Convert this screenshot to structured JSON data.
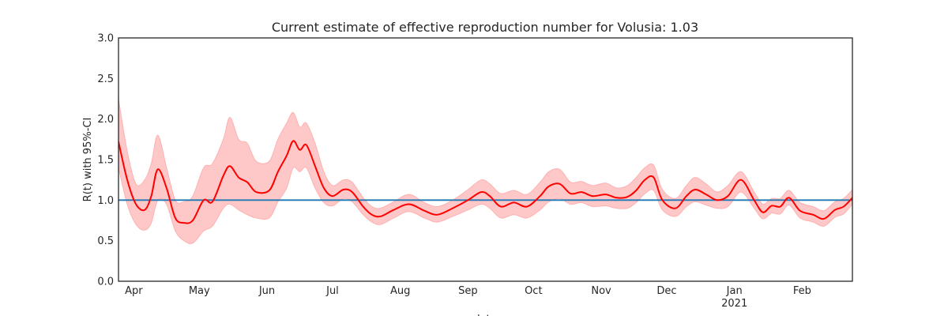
{
  "chart_data": {
    "type": "line",
    "title": "Current estimate of effective reproduction number for Volusia: 1.03",
    "xlabel": "date",
    "ylabel": "R(t) with 95%-CI",
    "ylim": [
      0,
      3
    ],
    "yticks": [
      "0.0",
      "0.5",
      "1.0",
      "1.5",
      "2.0",
      "2.5",
      "3.0"
    ],
    "xlim": [
      "2020-03-25",
      "2021-02-24"
    ],
    "xticks": [
      {
        "date": "2020-04-01",
        "label": "Apr"
      },
      {
        "date": "2020-05-01",
        "label": "May"
      },
      {
        "date": "2020-06-01",
        "label": "Jun"
      },
      {
        "date": "2020-07-01",
        "label": "Jul"
      },
      {
        "date": "2020-08-01",
        "label": "Aug"
      },
      {
        "date": "2020-09-01",
        "label": "Sep"
      },
      {
        "date": "2020-10-01",
        "label": "Oct"
      },
      {
        "date": "2020-11-01",
        "label": "Nov"
      },
      {
        "date": "2020-12-01",
        "label": "Dec"
      },
      {
        "date": "2021-01-01",
        "label": "Jan",
        "sublabel": "2021"
      },
      {
        "date": "2021-02-01",
        "label": "Feb"
      }
    ],
    "grid": false,
    "reference_line": 1.0,
    "colors": {
      "estimate": "#ff0000",
      "ci": "#ffc8c8",
      "ci_edge": "#ffb0b0",
      "reference": "#1f77b4",
      "frame": "#262626"
    },
    "series": [
      {
        "x": [
          "2020-03-25",
          "2020-03-29",
          "2020-04-02",
          "2020-04-06",
          "2020-04-09",
          "2020-04-12",
          "2020-04-16",
          "2020-04-20",
          "2020-04-24",
          "2020-04-28",
          "2020-05-03",
          "2020-05-07",
          "2020-05-12",
          "2020-05-15",
          "2020-05-19",
          "2020-05-23",
          "2020-05-27",
          "2020-06-02",
          "2020-06-06",
          "2020-06-10",
          "2020-06-13",
          "2020-06-16",
          "2020-06-19",
          "2020-06-23",
          "2020-06-27",
          "2020-07-01",
          "2020-07-06",
          "2020-07-10",
          "2020-07-15",
          "2020-07-19",
          "2020-07-23",
          "2020-07-29",
          "2020-08-05",
          "2020-08-12",
          "2020-08-18",
          "2020-08-25",
          "2020-09-01",
          "2020-09-07",
          "2020-09-11",
          "2020-09-16",
          "2020-09-22",
          "2020-09-28",
          "2020-10-04",
          "2020-10-08",
          "2020-10-13",
          "2020-10-18",
          "2020-10-23",
          "2020-10-28",
          "2020-11-03",
          "2020-11-08",
          "2020-11-13",
          "2020-11-17",
          "2020-11-21",
          "2020-11-25",
          "2020-11-29",
          "2020-12-05",
          "2020-12-10",
          "2020-12-14",
          "2020-12-19",
          "2020-12-24",
          "2020-12-29",
          "2021-01-04",
          "2021-01-10",
          "2021-01-14",
          "2021-01-18",
          "2021-01-22",
          "2021-01-26",
          "2021-01-31",
          "2021-02-06",
          "2021-02-11",
          "2021-02-16",
          "2021-02-20",
          "2021-02-24"
        ],
        "y": [
          1.72,
          1.25,
          0.95,
          0.88,
          1.05,
          1.38,
          1.15,
          0.78,
          0.72,
          0.75,
          1.0,
          0.98,
          1.3,
          1.42,
          1.28,
          1.22,
          1.1,
          1.12,
          1.35,
          1.55,
          1.73,
          1.62,
          1.68,
          1.42,
          1.15,
          1.05,
          1.13,
          1.1,
          0.92,
          0.82,
          0.8,
          0.88,
          0.95,
          0.87,
          0.82,
          0.9,
          1.0,
          1.1,
          1.05,
          0.92,
          0.97,
          0.92,
          1.05,
          1.17,
          1.2,
          1.08,
          1.1,
          1.05,
          1.07,
          1.03,
          1.04,
          1.12,
          1.25,
          1.28,
          1.0,
          0.9,
          1.05,
          1.13,
          1.07,
          1.0,
          1.05,
          1.25,
          1.0,
          0.85,
          0.93,
          0.92,
          1.03,
          0.87,
          0.82,
          0.77,
          0.88,
          0.92,
          1.03
        ],
        "lower": [
          1.4,
          0.95,
          0.7,
          0.63,
          0.72,
          1.0,
          0.95,
          0.62,
          0.5,
          0.47,
          0.62,
          0.68,
          0.9,
          0.95,
          0.88,
          0.82,
          0.78,
          0.78,
          0.98,
          1.15,
          1.4,
          1.35,
          1.4,
          1.15,
          0.97,
          0.93,
          1.02,
          0.98,
          0.82,
          0.73,
          0.7,
          0.78,
          0.86,
          0.78,
          0.73,
          0.8,
          0.88,
          0.95,
          0.9,
          0.78,
          0.82,
          0.78,
          0.88,
          0.98,
          1.02,
          0.95,
          0.97,
          0.92,
          0.93,
          0.9,
          0.9,
          0.97,
          1.08,
          1.12,
          0.88,
          0.8,
          0.92,
          0.98,
          0.94,
          0.9,
          0.92,
          1.1,
          0.9,
          0.77,
          0.84,
          0.83,
          0.94,
          0.78,
          0.73,
          0.68,
          0.79,
          0.83,
          0.95
        ],
        "upper": [
          2.25,
          1.6,
          1.2,
          1.25,
          1.45,
          1.8,
          1.4,
          1.0,
          0.98,
          1.05,
          1.4,
          1.45,
          1.75,
          2.02,
          1.75,
          1.7,
          1.48,
          1.48,
          1.75,
          1.95,
          2.08,
          1.9,
          1.95,
          1.7,
          1.35,
          1.18,
          1.25,
          1.22,
          1.03,
          0.92,
          0.9,
          0.98,
          1.07,
          0.97,
          0.92,
          1.0,
          1.13,
          1.25,
          1.2,
          1.08,
          1.12,
          1.07,
          1.22,
          1.35,
          1.38,
          1.22,
          1.23,
          1.18,
          1.21,
          1.15,
          1.18,
          1.28,
          1.4,
          1.43,
          1.13,
          1.02,
          1.18,
          1.28,
          1.2,
          1.1,
          1.18,
          1.35,
          1.1,
          0.95,
          1.02,
          1.02,
          1.12,
          0.97,
          0.92,
          0.87,
          0.98,
          1.02,
          1.13
        ]
      }
    ]
  }
}
